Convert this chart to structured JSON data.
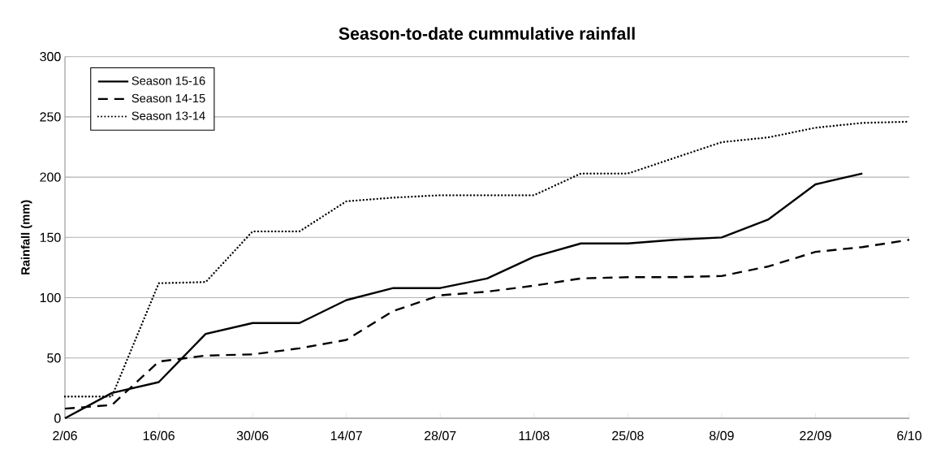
{
  "chart_data": {
    "type": "line",
    "title": "Season-to-date cummulative rainfall",
    "ylabel": "Rainfall (mm)",
    "categories": [
      "2/06",
      null,
      "16/06",
      null,
      "30/06",
      null,
      "14/07",
      null,
      "28/07",
      null,
      "11/08",
      null,
      "25/08",
      null,
      "8/09",
      null,
      "22/09",
      null,
      "6/10"
    ],
    "series": [
      {
        "name": "Season 15-16",
        "color": "#000000",
        "line_style": "solid",
        "values": [
          0,
          21,
          30,
          70,
          79,
          79,
          98,
          108,
          108,
          116,
          134,
          145,
          145,
          148,
          150,
          165,
          194,
          203,
          null
        ]
      },
      {
        "name": "Season 14-15",
        "color": "#000000",
        "line_style": "dashed",
        "values": [
          8,
          11,
          47,
          52,
          53,
          58,
          65,
          89,
          102,
          105,
          110,
          116,
          117,
          117,
          118,
          126,
          138,
          142,
          148
        ]
      },
      {
        "name": "Season 13-14",
        "color": "#000000",
        "line_style": "dotted",
        "values": [
          18,
          18,
          112,
          113,
          155,
          155,
          180,
          183,
          185,
          185,
          185,
          203,
          203,
          216,
          229,
          233,
          241,
          245,
          246
        ]
      }
    ],
    "ylim": [
      0,
      300
    ],
    "yticks": [
      0,
      50,
      100,
      150,
      200,
      250,
      300
    ],
    "grid": "y",
    "legend": "top left",
    "marker": "none"
  }
}
